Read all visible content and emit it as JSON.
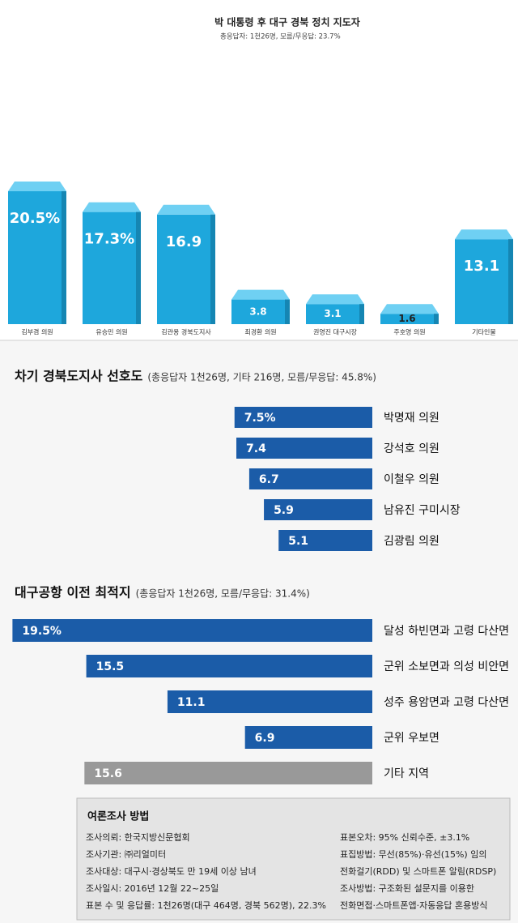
{
  "chart_data": [
    {
      "type": "bar3d",
      "title": "박 대통령 후 대구 경북 정치 지도자",
      "subtitle": "총응답자: 1천26명, 모름/무응답: 23.7%",
      "categories": [
        "김부겸 의원",
        "유승민 의원",
        "김관용 경북도지사",
        "최경환 의원",
        "권영진 대구시장",
        "주호영 의원",
        "기타인물"
      ],
      "values": [
        20.5,
        17.3,
        16.9,
        3.8,
        3.1,
        1.6,
        13.1
      ],
      "value_labels": [
        "20.5%",
        "17.3%",
        "16.9",
        "3.8",
        "3.1",
        "1.6",
        "13.1"
      ],
      "color": "#1ea7dc"
    },
    {
      "type": "barh",
      "title": "차기 경북도지사 선호도",
      "subtitle": "(총응답자 1천26명, 기타 216명, 모름/무응답: 45.8%)",
      "categories": [
        "박명재 의원",
        "강석호 의원",
        "이철우 의원",
        "남유진 구미시장",
        "김광림 의원"
      ],
      "values": [
        7.5,
        7.4,
        6.7,
        5.9,
        5.1
      ],
      "value_labels": [
        "7.5%",
        "7.4",
        "6.7",
        "5.9",
        "5.1"
      ],
      "colors": [
        "#1b5ca8",
        "#1b5ca8",
        "#1b5ca8",
        "#1b5ca8",
        "#1b5ca8"
      ]
    },
    {
      "type": "barh",
      "title": "대구공항 이전 최적지",
      "subtitle": "(총응답자 1천26명, 모름/무응답: 31.4%)",
      "categories": [
        "달성 하빈면과 고령 다산면",
        "군위 소보면과 의성 비안면",
        "성주 용암면과 고령 다산면",
        "군위 우보면",
        "기타 지역"
      ],
      "values": [
        19.5,
        15.5,
        11.1,
        6.9,
        15.6
      ],
      "value_labels": [
        "19.5%",
        "15.5",
        "11.1",
        "6.9",
        "15.6"
      ],
      "colors": [
        "#1b5ca8",
        "#1b5ca8",
        "#1b5ca8",
        "#1b5ca8",
        "#999999"
      ]
    }
  ],
  "survey_method": {
    "title": "여론조사 방법",
    "left": [
      "조사의뢰: 한국지방신문협회",
      "조사기관: ㈜리얼미터",
      "조사대상: 대구시·경상북도 만 19세 이상 남녀",
      "조사일시: 2016년 12월 22~25일",
      "표본 수 및 응답률: 1천26명(대구 464명, 경북 562명), 22.3%"
    ],
    "right": [
      "표본오차: 95% 신뢰수준, ±3.1%",
      "표집방법: 무선(85%)·유선(15%) 임의",
      "전화걸기(RDD) 및 스마트폰 알림(RDSP)",
      "조사방법: 구조화된 설문지를 이용한",
      "전화면접·스마트폰앱·자동응답 혼용방식"
    ]
  }
}
